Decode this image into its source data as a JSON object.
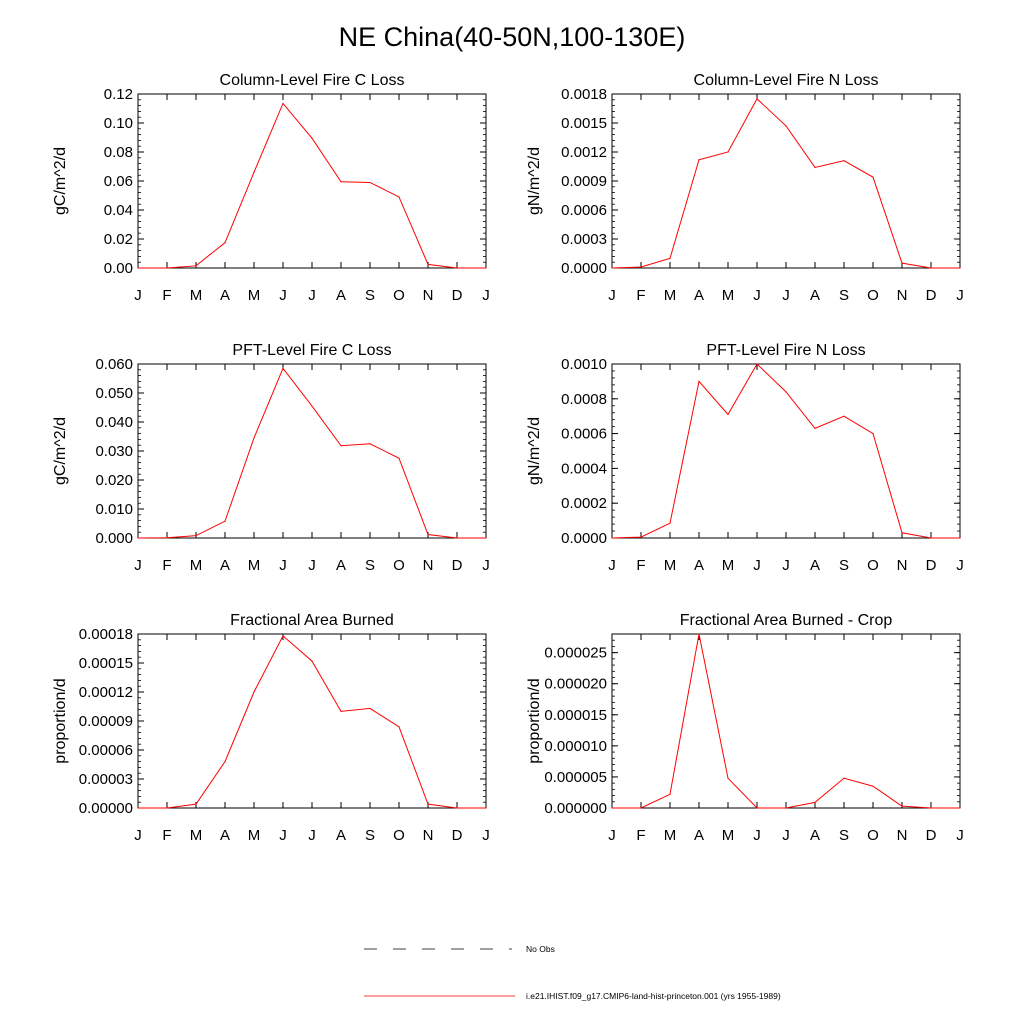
{
  "figure": {
    "title": "NE China(40-50N,100-130E)",
    "colors": {
      "model_line": "#ff0000",
      "obs_line": "#000000",
      "axes": "#000000",
      "background": "#ffffff"
    },
    "legend": {
      "obs_label": "No Obs",
      "model_label": "i.e21.IHIST.f09_g17.CMIP6-land-hist-princeton.001 (yrs 1955-1989)"
    }
  },
  "chart_data": [
    {
      "type": "line",
      "title": "Column-Level Fire C Loss",
      "ylabel": "gC/m^2/d",
      "categories": [
        "J",
        "F",
        "M",
        "A",
        "M",
        "J",
        "J",
        "A",
        "S",
        "O",
        "N",
        "D",
        "J"
      ],
      "ylim": [
        0,
        0.12
      ],
      "yticks": [
        "0.00",
        "0.02",
        "0.04",
        "0.06",
        "0.08",
        "0.10",
        "0.12"
      ],
      "series": [
        {
          "values": [
            0.0,
            0.0,
            0.0015,
            0.0175,
            0.066,
            0.1135,
            0.0895,
            0.0595,
            0.059,
            0.049,
            0.0025,
            0.0,
            0.0
          ]
        }
      ]
    },
    {
      "type": "line",
      "title": "Column-Level Fire N Loss",
      "ylabel": "gN/m^2/d",
      "categories": [
        "J",
        "F",
        "M",
        "A",
        "M",
        "J",
        "J",
        "A",
        "S",
        "O",
        "N",
        "D",
        "J"
      ],
      "ylim": [
        0,
        0.0018
      ],
      "yticks": [
        "0.0000",
        "0.0003",
        "0.0006",
        "0.0009",
        "0.0012",
        "0.0015",
        "0.0018"
      ],
      "series": [
        {
          "values": [
            0.0,
            1e-05,
            0.0001,
            0.00112,
            0.0012,
            0.00175,
            0.00147,
            0.00104,
            0.00111,
            0.00094,
            5e-05,
            0.0,
            0.0
          ]
        }
      ]
    },
    {
      "type": "line",
      "title": "PFT-Level Fire C Loss",
      "ylabel": "gC/m^2/d",
      "categories": [
        "J",
        "F",
        "M",
        "A",
        "M",
        "J",
        "J",
        "A",
        "S",
        "O",
        "N",
        "D",
        "J"
      ],
      "ylim": [
        0,
        0.06
      ],
      "yticks": [
        "0.000",
        "0.010",
        "0.020",
        "0.030",
        "0.040",
        "0.050",
        "0.060"
      ],
      "series": [
        {
          "values": [
            0.0,
            0.0001,
            0.0008,
            0.0058,
            0.0345,
            0.0585,
            0.0455,
            0.0318,
            0.0325,
            0.0275,
            0.0012,
            0.0,
            0.0
          ]
        }
      ]
    },
    {
      "type": "line",
      "title": "PFT-Level Fire N Loss",
      "ylabel": "gN/m^2/d",
      "categories": [
        "J",
        "F",
        "M",
        "A",
        "M",
        "J",
        "J",
        "A",
        "S",
        "O",
        "N",
        "D",
        "J"
      ],
      "ylim": [
        0,
        0.001
      ],
      "yticks": [
        "0.0000",
        "0.0002",
        "0.0004",
        "0.0006",
        "0.0008",
        "0.0010"
      ],
      "series": [
        {
          "values": [
            0.0,
            5e-06,
            8.5e-05,
            0.0009,
            0.00071,
            0.001,
            0.00084,
            0.00063,
            0.0007,
            0.0006,
            3e-05,
            0.0,
            0.0
          ]
        }
      ]
    },
    {
      "type": "line",
      "title": "Fractional Area Burned",
      "ylabel": "proportion/d",
      "categories": [
        "J",
        "F",
        "M",
        "A",
        "M",
        "J",
        "J",
        "A",
        "S",
        "O",
        "N",
        "D",
        "J"
      ],
      "ylim": [
        0,
        0.00018
      ],
      "yticks": [
        "0.00000",
        "0.00003",
        "0.00006",
        "0.00009",
        "0.00012",
        "0.00015",
        "0.00018"
      ],
      "series": [
        {
          "values": [
            0.0,
            0.0,
            4e-06,
            4.8e-05,
            0.00012,
            0.000178,
            0.000152,
            0.0001,
            0.000103,
            8.4e-05,
            4e-06,
            0.0,
            0.0
          ]
        }
      ]
    },
    {
      "type": "line",
      "title": "Fractional Area Burned - Crop",
      "ylabel": "proportion/d",
      "categories": [
        "J",
        "F",
        "M",
        "A",
        "M",
        "J",
        "J",
        "A",
        "S",
        "O",
        "N",
        "D",
        "J"
      ],
      "ylim": [
        0,
        2.8e-05
      ],
      "yticks": [
        "0.000000",
        "0.000005",
        "0.000010",
        "0.000015",
        "0.000020",
        "0.000025"
      ],
      "ytick_values": [
        0,
        5e-06,
        1e-05,
        1.5e-05,
        2e-05,
        2.5e-05
      ],
      "series": [
        {
          "values": [
            0.0,
            0.0,
            2.2e-06,
            2.8e-05,
            4.8e-06,
            0.0,
            0.0,
            9e-07,
            4.8e-06,
            3.5e-06,
            3e-07,
            0.0,
            0.0
          ]
        }
      ]
    }
  ]
}
